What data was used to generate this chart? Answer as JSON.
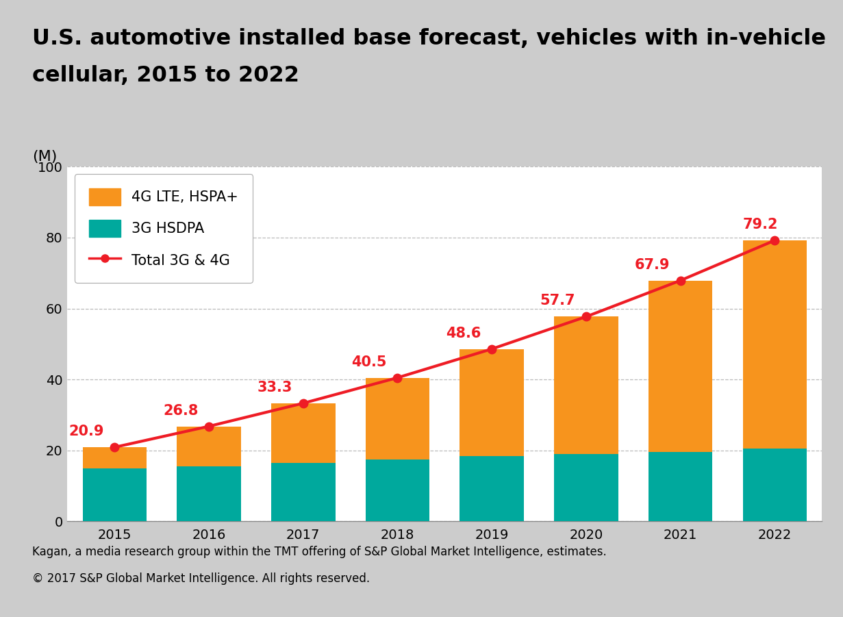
{
  "years": [
    2015,
    2016,
    2017,
    2018,
    2019,
    2020,
    2021,
    2022
  ],
  "hsdpa_3g": [
    15.0,
    15.5,
    16.5,
    17.5,
    18.5,
    19.0,
    19.5,
    20.5
  ],
  "lte_4g": [
    5.9,
    11.3,
    16.8,
    23.0,
    30.1,
    38.7,
    48.4,
    58.7
  ],
  "total": [
    20.9,
    26.8,
    33.3,
    40.5,
    48.6,
    57.7,
    67.9,
    79.2
  ],
  "color_4g": "#F7941D",
  "color_3g": "#00A99D",
  "color_line": "#EE1C25",
  "color_bg_outer": "#CCCCCC",
  "color_bg_plot": "#FFFFFF",
  "title_line1": "U.S. automotive installed base forecast, vehicles with in-vehicle",
  "title_line2": "cellular, 2015 to 2022",
  "ylabel": "(M)",
  "ylim": [
    0,
    100
  ],
  "yticks": [
    0,
    20,
    40,
    60,
    80,
    100
  ],
  "legend_labels": [
    "4G LTE, HSPA+",
    "3G HSDPA",
    "Total 3G & 4G"
  ],
  "footer_line1": "Kagan, a media research group within the TMT offering of S&P Global Market Intelligence, estimates.",
  "footer_line2": "© 2017 S&P Global Market Intelligence. All rights reserved.",
  "title_fontsize": 23,
  "axis_fontsize": 14,
  "legend_fontsize": 15,
  "annotation_fontsize": 15,
  "footer_fontsize": 12,
  "annotation_offsets": [
    -0.3,
    -0.3,
    -0.3,
    -0.3,
    -0.3,
    -0.3,
    -0.3,
    -0.15
  ],
  "annotation_y_offsets": [
    2.5,
    2.5,
    2.5,
    2.5,
    2.5,
    2.5,
    2.5,
    2.5
  ]
}
